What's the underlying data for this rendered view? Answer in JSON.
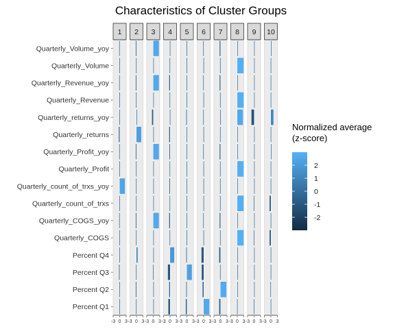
{
  "chart_data": {
    "type": "bar",
    "title": "Characteristics of Cluster Groups",
    "xlabel": "",
    "ylabel": "",
    "xlim": [
      -3,
      3
    ],
    "x_ticks": [
      "-3",
      "0",
      "3"
    ],
    "facets": [
      "1",
      "2",
      "3",
      "4",
      "5",
      "6",
      "7",
      "8",
      "9",
      "10"
    ],
    "categories": [
      "Quarterly_Volume_yoy",
      "Quarterly_Volume",
      "Quarterly_Revenue_yoy",
      "Quarterly_Revenue",
      "Quarterly_returns_yoy",
      "Quarterly_returns",
      "Quarterly_Profit_yoy",
      "Quarterly_Profit",
      "Quarterly_count_of_trxs_yoy",
      "Quarterly_count_of_trxs",
      "Quarterly_COGS_yoy",
      "Quarterly_COGS",
      "Percent Q4",
      "Percent Q3",
      "Percent Q2",
      "Percent Q1"
    ],
    "series": [
      {
        "name": "1",
        "values": [
          -0.2,
          -0.1,
          -0.2,
          -0.1,
          -0.1,
          -0.4,
          -0.2,
          -0.1,
          2.4,
          -0.1,
          -0.2,
          -0.1,
          -0.1,
          -0.3,
          -0.1,
          -0.1
        ]
      },
      {
        "name": "2",
        "values": [
          -0.3,
          -0.2,
          -0.3,
          -0.2,
          0.1,
          2.2,
          -0.3,
          -0.2,
          -0.2,
          -0.2,
          -0.3,
          -0.2,
          0.5,
          -0.2,
          -0.3,
          -0.2
        ]
      },
      {
        "name": "3",
        "values": [
          2.6,
          0.1,
          2.6,
          0.1,
          -0.6,
          0.1,
          2.6,
          0.1,
          0.1,
          0.1,
          2.6,
          0.1,
          0.1,
          -0.1,
          0.1,
          0.1
        ]
      },
      {
        "name": "4",
        "values": [
          -0.1,
          -0.2,
          -0.4,
          -0.2,
          -0.1,
          -0.4,
          -0.3,
          -0.2,
          -0.3,
          -0.2,
          -0.4,
          -0.2,
          1.9,
          -1.0,
          -0.4,
          -0.8
        ]
      },
      {
        "name": "5",
        "values": [
          -0.1,
          -0.1,
          -0.1,
          -0.1,
          -0.3,
          -0.1,
          -0.1,
          -0.1,
          -0.1,
          -0.1,
          -0.1,
          -0.1,
          -0.3,
          2.3,
          -0.3,
          -0.5
        ]
      },
      {
        "name": "6",
        "values": [
          -0.2,
          -0.1,
          -0.2,
          -0.1,
          -0.2,
          -0.1,
          -0.2,
          -0.1,
          -0.1,
          -0.1,
          -0.2,
          -0.1,
          -1.0,
          -0.9,
          -0.5,
          2.6
        ]
      },
      {
        "name": "7",
        "values": [
          -0.4,
          -0.2,
          -0.4,
          -0.2,
          -0.1,
          -0.2,
          -0.4,
          -0.2,
          -0.2,
          -0.2,
          -0.4,
          -0.2,
          -0.6,
          -0.2,
          2.7,
          -0.6
        ]
      },
      {
        "name": "8",
        "values": [
          0.1,
          2.9,
          0.1,
          2.9,
          2.6,
          0.1,
          0.1,
          2.9,
          0.1,
          2.9,
          0.1,
          2.9,
          0.1,
          0.1,
          0.1,
          -0.1
        ]
      },
      {
        "name": "9",
        "values": [
          0.1,
          0.1,
          0.1,
          0.1,
          -1.2,
          0.1,
          0.1,
          0.1,
          0.1,
          -0.1,
          0.1,
          -0.1,
          0.1,
          0.1,
          0.1,
          -0.1
        ]
      },
      {
        "name": "10",
        "values": [
          0.1,
          -0.1,
          -0.1,
          -0.1,
          1.2,
          -0.1,
          0.1,
          -0.1,
          -0.1,
          -0.6,
          -0.1,
          -0.6,
          -0.1,
          -0.1,
          -0.2,
          -0.1
        ]
      }
    ],
    "legend": {
      "title": "Normalized average\n (z-score)",
      "breaks": [
        "2",
        "1",
        "0",
        "-1",
        "-2"
      ],
      "range": [
        -3,
        3
      ],
      "low_color": "#132B43",
      "high_color": "#56B1F7",
      "placement": "right"
    },
    "grid": true,
    "panel_background": "#EBEBEB",
    "strip_background": "#D9D9D9"
  }
}
